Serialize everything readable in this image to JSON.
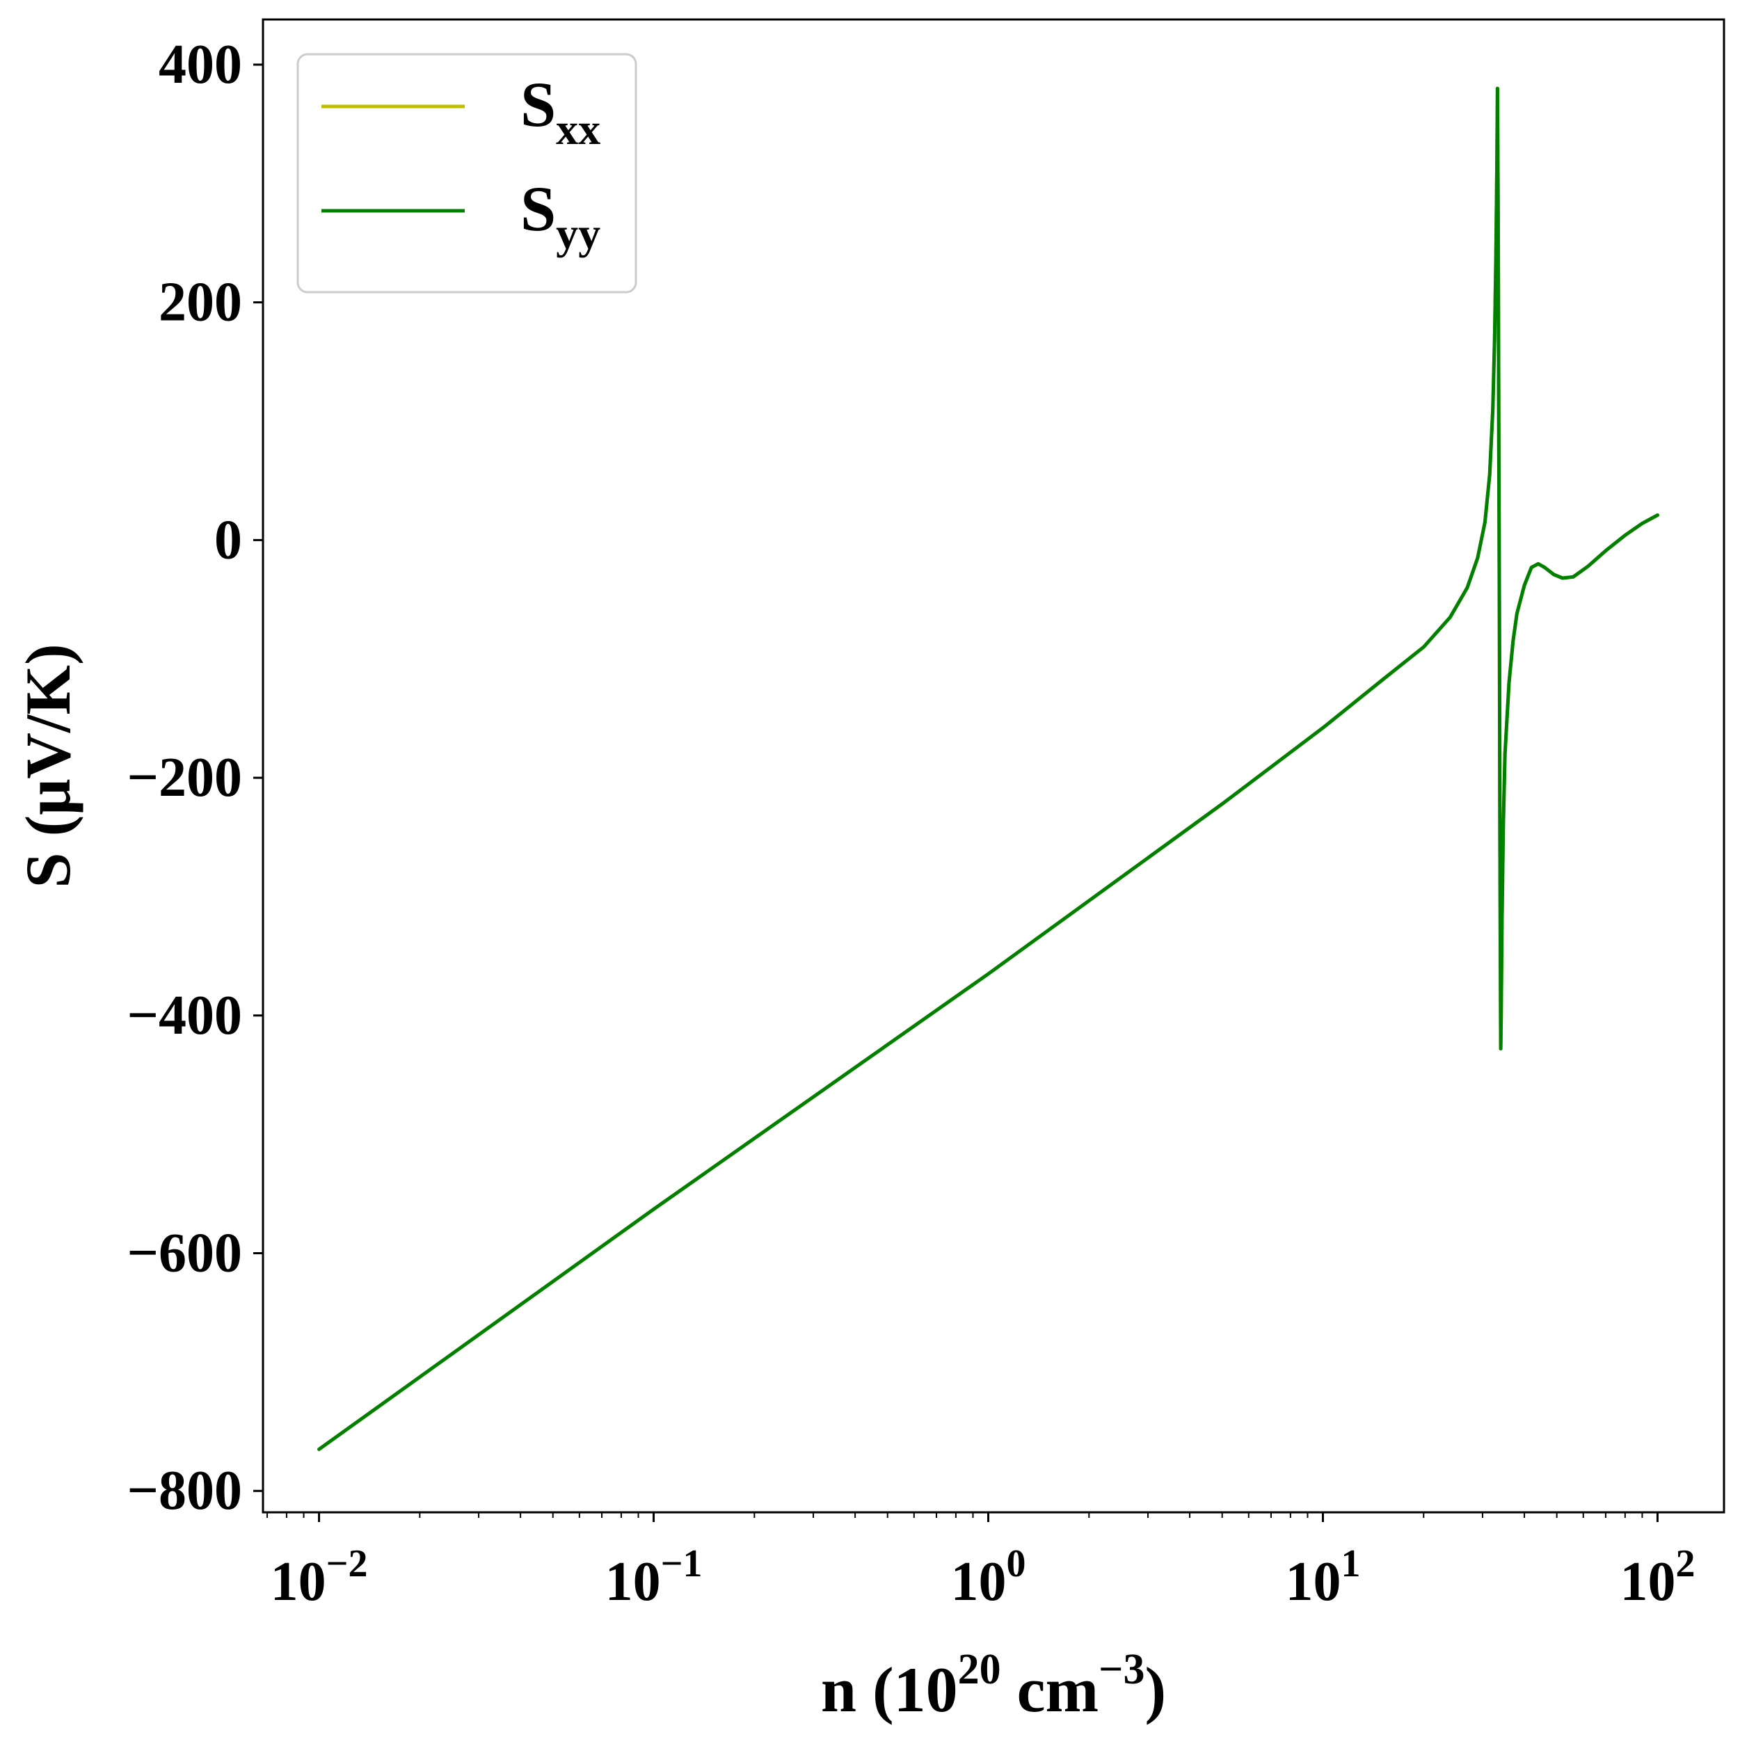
{
  "chart_data": {
    "type": "line",
    "title": "",
    "xlabel": {
      "prefix": "n (10",
      "exp1": "20",
      "mid": " cm",
      "exp2": "−3",
      "suffix": ")"
    },
    "ylabel": "S (μV/K)",
    "xscale": "log",
    "xlim": [
      0.0068,
      158
    ],
    "ylim": [
      -818,
      438
    ],
    "grid": false,
    "legend_position": "top-left",
    "x_ticks": [
      {
        "value": 0.01,
        "base": "10",
        "exp": "−2"
      },
      {
        "value": 0.1,
        "base": "10",
        "exp": "−1"
      },
      {
        "value": 1,
        "base": "10",
        "exp": "0"
      },
      {
        "value": 10,
        "base": "10",
        "exp": "1"
      },
      {
        "value": 100,
        "base": "10",
        "exp": "2"
      }
    ],
    "y_ticks": [
      {
        "value": 400,
        "label": "400"
      },
      {
        "value": 200,
        "label": "200"
      },
      {
        "value": 0,
        "label": "0"
      },
      {
        "value": -200,
        "label": "−200"
      },
      {
        "value": -400,
        "label": "−400"
      },
      {
        "value": -600,
        "label": "−600"
      },
      {
        "value": -800,
        "label": "−800"
      }
    ],
    "series": [
      {
        "name": {
          "base": "S",
          "sub": "xx"
        },
        "color": "#bfbf00",
        "points": [
          [
            0.01,
            -765
          ],
          [
            0.1,
            -563
          ],
          [
            1,
            -365
          ],
          [
            5,
            -222
          ],
          [
            10,
            -158
          ],
          [
            15,
            -118
          ],
          [
            20,
            -90
          ],
          [
            24,
            -65
          ],
          [
            27,
            -40
          ],
          [
            29,
            -15
          ],
          [
            30.5,
            15
          ],
          [
            31.5,
            55
          ],
          [
            32.2,
            110
          ],
          [
            32.6,
            170
          ],
          [
            32.9,
            240
          ],
          [
            33.1,
            310
          ],
          [
            33.25,
            380
          ],
          [
            33.4,
            270
          ],
          [
            33.55,
            90
          ],
          [
            33.7,
            -90
          ],
          [
            33.8,
            -250
          ],
          [
            33.9,
            -340
          ],
          [
            34.0,
            -428
          ],
          [
            34.1,
            -400
          ],
          [
            34.3,
            -320
          ],
          [
            34.6,
            -240
          ],
          [
            35,
            -180
          ],
          [
            36,
            -120
          ],
          [
            37,
            -85
          ],
          [
            38,
            -62
          ],
          [
            40,
            -38
          ],
          [
            42,
            -23
          ],
          [
            44,
            -20
          ],
          [
            46,
            -23
          ],
          [
            49,
            -29
          ],
          [
            52,
            -32
          ],
          [
            56,
            -31
          ],
          [
            62,
            -22
          ],
          [
            70,
            -9
          ],
          [
            80,
            4
          ],
          [
            90,
            14
          ],
          [
            100,
            21
          ]
        ]
      },
      {
        "name": {
          "base": "S",
          "sub": "yy"
        },
        "color": "#008000",
        "points": [
          [
            0.01,
            -765
          ],
          [
            0.1,
            -563
          ],
          [
            1,
            -365
          ],
          [
            5,
            -222
          ],
          [
            10,
            -158
          ],
          [
            15,
            -118
          ],
          [
            20,
            -90
          ],
          [
            24,
            -65
          ],
          [
            27,
            -40
          ],
          [
            29,
            -15
          ],
          [
            30.5,
            15
          ],
          [
            31.5,
            55
          ],
          [
            32.2,
            110
          ],
          [
            32.6,
            170
          ],
          [
            32.9,
            240
          ],
          [
            33.1,
            310
          ],
          [
            33.25,
            380
          ],
          [
            33.4,
            270
          ],
          [
            33.55,
            90
          ],
          [
            33.7,
            -90
          ],
          [
            33.8,
            -250
          ],
          [
            33.9,
            -340
          ],
          [
            34.0,
            -428
          ],
          [
            34.1,
            -400
          ],
          [
            34.3,
            -320
          ],
          [
            34.6,
            -240
          ],
          [
            35,
            -180
          ],
          [
            36,
            -120
          ],
          [
            37,
            -85
          ],
          [
            38,
            -62
          ],
          [
            40,
            -38
          ],
          [
            42,
            -23
          ],
          [
            44,
            -20
          ],
          [
            46,
            -23
          ],
          [
            49,
            -29
          ],
          [
            52,
            -32
          ],
          [
            56,
            -31
          ],
          [
            62,
            -22
          ],
          [
            70,
            -9
          ],
          [
            80,
            4
          ],
          [
            90,
            14
          ],
          [
            100,
            21
          ]
        ]
      }
    ]
  }
}
